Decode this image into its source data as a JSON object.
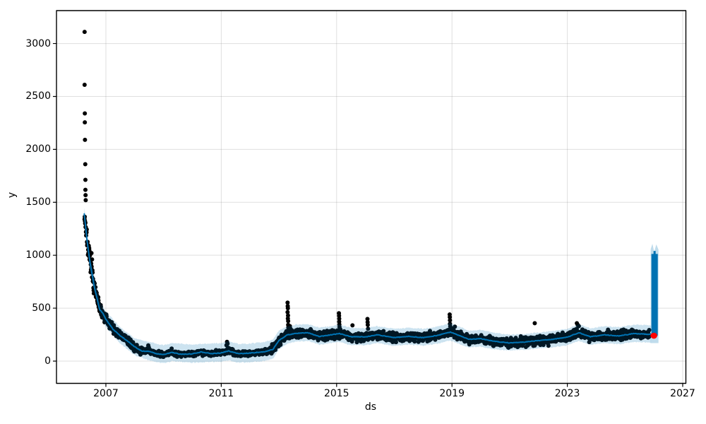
{
  "chart_data": {
    "type": "scatter",
    "title": "",
    "xlabel": "ds",
    "ylabel": "y",
    "legend": "none",
    "grid": true,
    "xlim": [
      2005.287,
      2027.11
    ],
    "ylim": [
      -210.5,
      3311
    ],
    "x_ticks": [
      "2007",
      "2011",
      "2015",
      "2019",
      "2023",
      "2027"
    ],
    "x_tick_values": [
      2007,
      2011,
      2015,
      2019,
      2023,
      2027
    ],
    "y_ticks": [
      "0",
      "500",
      "1000",
      "1500",
      "2000",
      "2500",
      "3000"
    ],
    "y_tick_values": [
      0,
      500,
      1000,
      1500,
      2000,
      2500,
      3000
    ],
    "colors": {
      "points": "#000000",
      "line": "#0072B2",
      "band": "#0072B2",
      "band_opacity": 0.2,
      "grid": "#808080",
      "grid_opacity": 0.25,
      "spine": "#000000",
      "final_point": "#ff0000"
    },
    "forecast_line": [
      [
        2006.25,
        1390
      ],
      [
        2006.35,
        1130
      ],
      [
        2006.45,
        930
      ],
      [
        2006.6,
        700
      ],
      [
        2006.78,
        490
      ],
      [
        2006.9,
        450
      ],
      [
        2007.0,
        395
      ],
      [
        2007.25,
        300
      ],
      [
        2007.5,
        240
      ],
      [
        2007.75,
        190
      ],
      [
        2008.0,
        135
      ],
      [
        2008.25,
        95
      ],
      [
        2008.5,
        92
      ],
      [
        2008.75,
        70
      ],
      [
        2009.0,
        62
      ],
      [
        2009.3,
        82
      ],
      [
        2009.6,
        64
      ],
      [
        2010.0,
        68
      ],
      [
        2010.3,
        86
      ],
      [
        2010.7,
        70
      ],
      [
        2011.0,
        78
      ],
      [
        2011.25,
        96
      ],
      [
        2011.6,
        70
      ],
      [
        2012.0,
        76
      ],
      [
        2012.5,
        88
      ],
      [
        2012.8,
        112
      ],
      [
        2013.0,
        195
      ],
      [
        2013.3,
        248
      ],
      [
        2013.6,
        262
      ],
      [
        2014.0,
        268
      ],
      [
        2014.4,
        232
      ],
      [
        2014.8,
        248
      ],
      [
        2015.1,
        260
      ],
      [
        2015.5,
        230
      ],
      [
        2016.0,
        228
      ],
      [
        2016.4,
        248
      ],
      [
        2017.0,
        222
      ],
      [
        2017.5,
        233
      ],
      [
        2018.0,
        222
      ],
      [
        2018.5,
        242
      ],
      [
        2018.95,
        275
      ],
      [
        2019.3,
        235
      ],
      [
        2019.6,
        205
      ],
      [
        2020.0,
        212
      ],
      [
        2020.5,
        185
      ],
      [
        2021.0,
        172
      ],
      [
        2021.5,
        180
      ],
      [
        2022.0,
        194
      ],
      [
        2022.5,
        206
      ],
      [
        2023.0,
        226
      ],
      [
        2023.4,
        268
      ],
      [
        2023.8,
        230
      ],
      [
        2024.3,
        247
      ],
      [
        2024.8,
        238
      ],
      [
        2025.3,
        260
      ],
      [
        2025.9,
        252
      ]
    ],
    "uncertainty_band": [
      [
        2006.25,
        1330,
        1450
      ],
      [
        2006.45,
        850,
        980
      ],
      [
        2006.8,
        420,
        560
      ],
      [
        2007.0,
        320,
        470
      ],
      [
        2007.5,
        165,
        320
      ],
      [
        2008.0,
        55,
        215
      ],
      [
        2008.5,
        5,
        180
      ],
      [
        2009.0,
        -20,
        150
      ],
      [
        2009.3,
        0,
        170
      ],
      [
        2010.0,
        -15,
        155
      ],
      [
        2010.5,
        -10,
        165
      ],
      [
        2011.0,
        -5,
        170
      ],
      [
        2011.25,
        10,
        190
      ],
      [
        2011.6,
        -15,
        160
      ],
      [
        2012.0,
        -10,
        165
      ],
      [
        2012.5,
        0,
        180
      ],
      [
        2012.8,
        25,
        205
      ],
      [
        2013.0,
        110,
        290
      ],
      [
        2013.3,
        165,
        330
      ],
      [
        2013.6,
        185,
        345
      ],
      [
        2014.0,
        190,
        350
      ],
      [
        2014.4,
        155,
        315
      ],
      [
        2014.8,
        170,
        330
      ],
      [
        2015.1,
        180,
        345
      ],
      [
        2015.5,
        150,
        315
      ],
      [
        2016.0,
        150,
        310
      ],
      [
        2016.4,
        170,
        330
      ],
      [
        2017.0,
        145,
        305
      ],
      [
        2017.5,
        155,
        315
      ],
      [
        2018.0,
        145,
        305
      ],
      [
        2018.5,
        165,
        325
      ],
      [
        2018.95,
        195,
        360
      ],
      [
        2019.3,
        155,
        320
      ],
      [
        2019.6,
        130,
        285
      ],
      [
        2020.0,
        135,
        295
      ],
      [
        2020.5,
        110,
        265
      ],
      [
        2021.0,
        100,
        250
      ],
      [
        2021.5,
        105,
        255
      ],
      [
        2022.0,
        120,
        270
      ],
      [
        2022.5,
        130,
        285
      ],
      [
        2023.0,
        150,
        305
      ],
      [
        2023.4,
        190,
        350
      ],
      [
        2023.8,
        155,
        310
      ],
      [
        2024.3,
        170,
        330
      ],
      [
        2024.8,
        160,
        320
      ],
      [
        2025.3,
        180,
        345
      ],
      [
        2025.9,
        175,
        340
      ]
    ],
    "observations_spec": {
      "start": 2006.26,
      "end": 2025.845,
      "step_years": 0.007,
      "seed": 7,
      "dot_radius": 3,
      "min_value": 4,
      "noise_eras": [
        [
          2006.26,
          2006.6,
          62
        ],
        [
          2006.6,
          2007.3,
          47
        ],
        [
          2007.3,
          2008.3,
          32
        ],
        [
          2008.3,
          2012.7,
          21
        ],
        [
          2012.7,
          2025.85,
          35
        ]
      ]
    },
    "render_noise": {
      "line_amp": 6,
      "band_amp": 11,
      "period_years": 0.022
    },
    "outliers": [
      [
        2006.262,
        3110
      ],
      [
        2006.262,
        2610
      ],
      [
        2006.27,
        2340
      ],
      [
        2006.27,
        2255
      ],
      [
        2006.275,
        2090
      ],
      [
        2006.285,
        1860
      ],
      [
        2006.29,
        1712
      ],
      [
        2006.29,
        1618
      ],
      [
        2006.295,
        1568
      ],
      [
        2006.3,
        1520
      ],
      [
        2006.5,
        1020
      ],
      [
        2006.52,
        960
      ],
      [
        2008.47,
        148
      ],
      [
        2008.49,
        128
      ],
      [
        2009.28,
        118
      ],
      [
        2011.18,
        150
      ],
      [
        2011.2,
        182
      ],
      [
        2011.22,
        165
      ],
      [
        2013.3,
        552
      ],
      [
        2013.305,
        520
      ],
      [
        2013.31,
        500
      ],
      [
        2013.3,
        462
      ],
      [
        2013.315,
        430
      ],
      [
        2013.31,
        402
      ],
      [
        2013.32,
        378
      ],
      [
        2013.32,
        342
      ],
      [
        2013.325,
        318
      ],
      [
        2013.33,
        298
      ],
      [
        2013.38,
        330
      ],
      [
        2013.4,
        305
      ],
      [
        2015.08,
        452
      ],
      [
        2015.085,
        428
      ],
      [
        2015.09,
        400
      ],
      [
        2015.09,
        372
      ],
      [
        2015.095,
        345
      ],
      [
        2015.1,
        322
      ],
      [
        2015.55,
        338
      ],
      [
        2016.07,
        398
      ],
      [
        2016.075,
        368
      ],
      [
        2016.08,
        342
      ],
      [
        2016.09,
        305
      ],
      [
        2018.92,
        440
      ],
      [
        2018.925,
        415
      ],
      [
        2018.93,
        385
      ],
      [
        2018.93,
        352
      ],
      [
        2018.94,
        328
      ],
      [
        2019.1,
        325
      ],
      [
        2021.87,
        358
      ],
      [
        2023.33,
        358
      ],
      [
        2023.36,
        342
      ],
      [
        2023.4,
        330
      ],
      [
        2024.95,
        298
      ]
    ],
    "future_column": {
      "x_start": 2025.89,
      "x_end": 2026.16,
      "yhat_bottom": 240,
      "yhat_top": 1012,
      "notch_top": 1040,
      "upper_top": 1108,
      "lower_bottom": 170
    },
    "final_point": {
      "x": 2026.0,
      "y": 240
    }
  }
}
